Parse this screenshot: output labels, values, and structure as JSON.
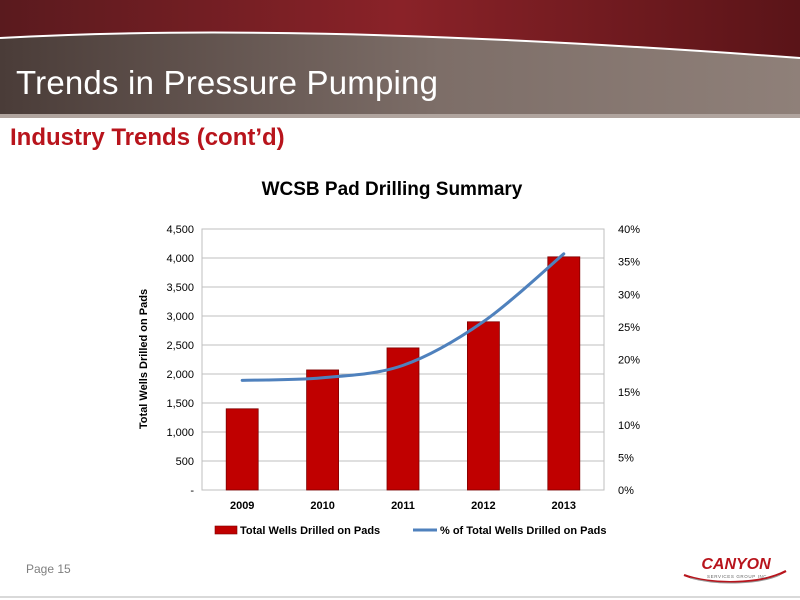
{
  "slide": {
    "title": "Trends in Pressure Pumping",
    "section_heading": "Industry Trends (cont’d)",
    "page_label": "Page 15",
    "logo": {
      "name": "CANYON",
      "tagline": "SERVICES GROUP INC."
    }
  },
  "colors": {
    "header_dark": "#3f1216",
    "header_red": "#7a1a1f",
    "header_band": "#7f6f68",
    "heading_red": "#b8141c",
    "bar_fill": "#c00000",
    "bar_stroke": "#7f0000",
    "line": "#4f81bd",
    "grid": "#bfbfbf"
  },
  "chart_data": {
    "type": "bar",
    "title": "WCSB Pad Drilling Summary",
    "categories": [
      "2009",
      "2010",
      "2011",
      "2012",
      "2013"
    ],
    "ylabel": "Total Wells Drilled on Pads",
    "ylim": [
      0,
      4500
    ],
    "yticks": [
      "-",
      "500",
      "1,000",
      "1,500",
      "2,000",
      "2,500",
      "3,000",
      "3,500",
      "4,000",
      "4,500"
    ],
    "y2lim": [
      0,
      0.4
    ],
    "y2ticks": [
      "0%",
      "5%",
      "10%",
      "15%",
      "20%",
      "25%",
      "30%",
      "35%",
      "40%"
    ],
    "grid": true,
    "legend_position": "bottom",
    "series": [
      {
        "name": "Total Wells Drilled on Pads",
        "type": "bar",
        "axis": "left",
        "values": [
          1400,
          2070,
          2450,
          2900,
          4020
        ]
      },
      {
        "name": "% of Total Wells Drilled on Pads",
        "type": "line",
        "axis": "right",
        "values": [
          0.168,
          0.172,
          0.191,
          0.258,
          0.362
        ]
      }
    ]
  }
}
